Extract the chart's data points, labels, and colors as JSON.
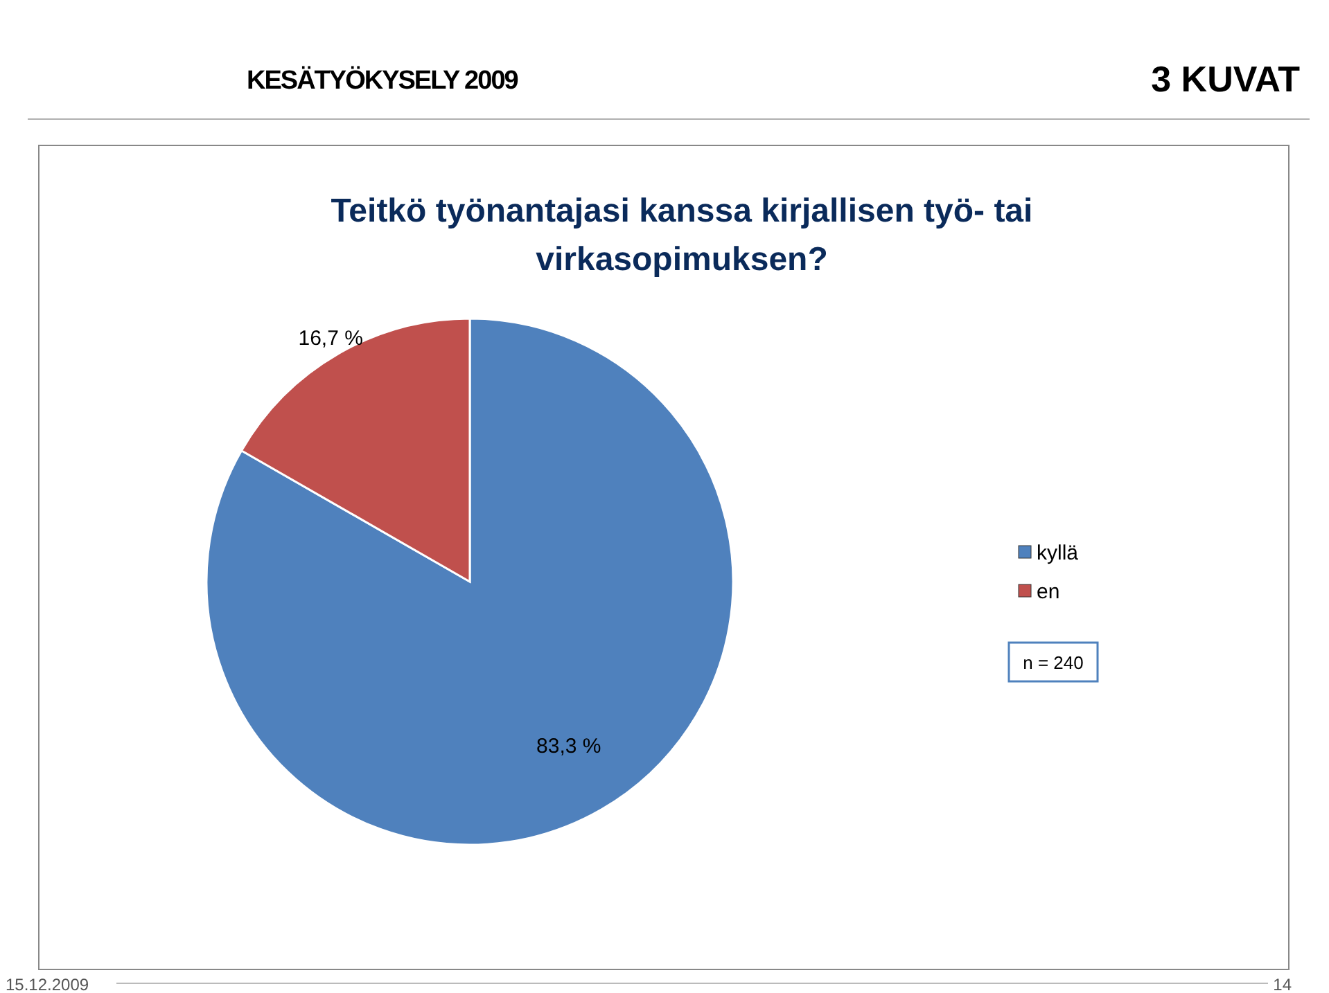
{
  "chart_data": {
    "type": "pie",
    "title": "Teitkö työnantajasi kanssa kirjallisen työ- tai virkasopimuksen?",
    "categories": [
      "kyllä",
      "en"
    ],
    "values": [
      83.3,
      16.7
    ],
    "colors": [
      "#4f81bd",
      "#c0504d"
    ],
    "value_labels": [
      "83,3 %",
      "16,7 %"
    ],
    "legend": "right",
    "annotations": [
      "KESÄTYÖKYSELY 2009",
      "3 KUVAT",
      "n = 240",
      "15.12.2009",
      "14"
    ]
  }
}
